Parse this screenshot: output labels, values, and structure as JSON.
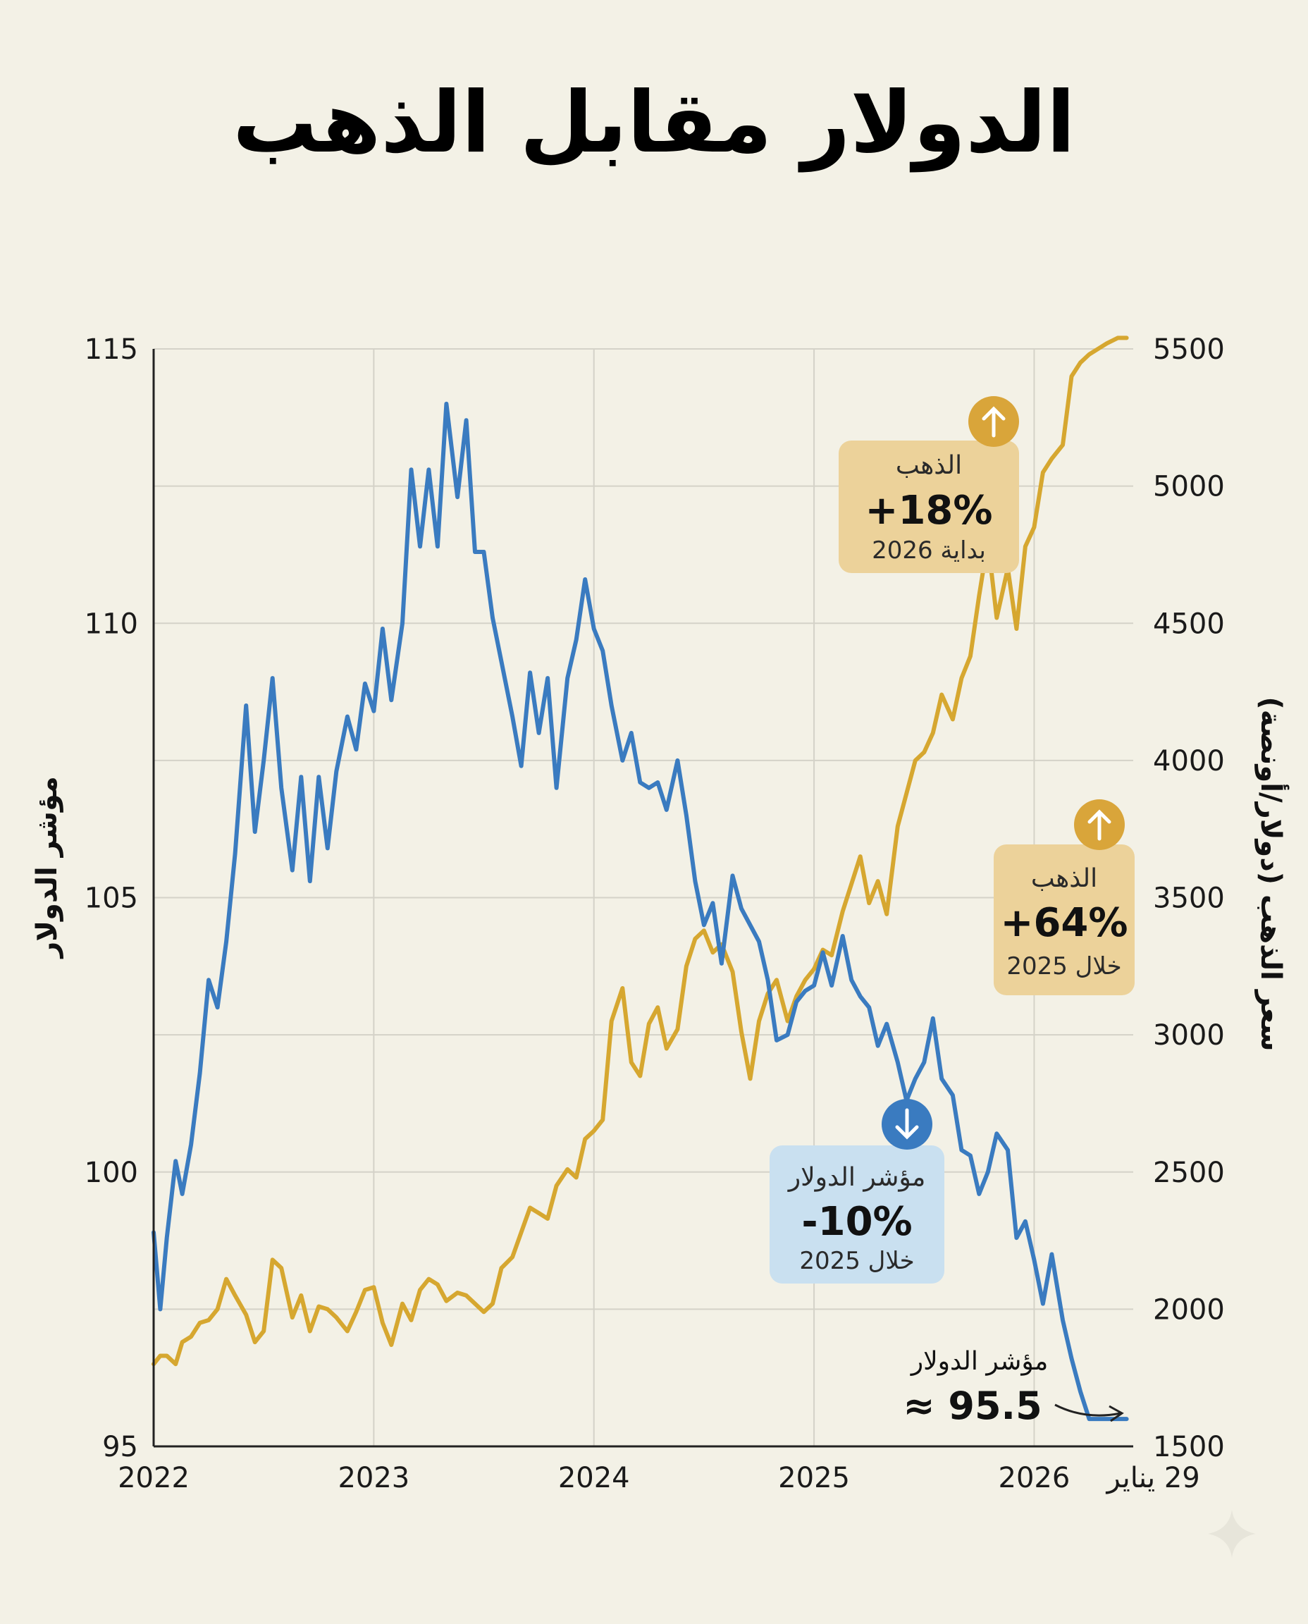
{
  "colors": {
    "background": "#f3f1e6",
    "dollar": "#3a7bc0",
    "gold": "#d6a730",
    "grid": "#d4d2c8",
    "gold_badge_fill": "#ecd29a",
    "gold_badge_circle": "#d9a53a",
    "dollar_badge_fill": "#c9e0f0",
    "dollar_badge_circle": "#3a7bc0"
  },
  "chart_data": {
    "type": "line",
    "title": "الدولار مقابل الذهب",
    "x_tick_labels": [
      "2022",
      "2023",
      "2024",
      "2025",
      "2026",
      "29 يناير"
    ],
    "x_tick_values": [
      2022,
      2023,
      2024,
      2025,
      2026,
      2026.42
    ],
    "xlim": [
      2022,
      2026.45
    ],
    "left_axis": {
      "label": "مؤشر الدولار",
      "ylim": [
        95,
        115
      ],
      "ticks": [
        "95",
        "100",
        "105",
        "110",
        "115"
      ]
    },
    "right_axis": {
      "label": "سعر الذهب (دولار/أونصة)",
      "ylim": [
        1500,
        5500
      ],
      "ticks": [
        "1500",
        "2000",
        "2500",
        "3000",
        "3500",
        "4000",
        "4500",
        "5000",
        "5500"
      ]
    },
    "series": [
      {
        "name": "مؤشر الدولار",
        "axis": "left",
        "x": [
          2022.0,
          2022.03,
          2022.06,
          2022.1,
          2022.13,
          2022.17,
          2022.21,
          2022.25,
          2022.29,
          2022.33,
          2022.37,
          2022.42,
          2022.46,
          2022.5,
          2022.54,
          2022.58,
          2022.63,
          2022.67,
          2022.71,
          2022.75,
          2022.79,
          2022.83,
          2022.88,
          2022.92,
          2022.96,
          2023.0,
          2023.04,
          2023.08,
          2023.13,
          2023.17,
          2023.21,
          2023.25,
          2023.29,
          2023.33,
          2023.38,
          2023.42,
          2023.46,
          2023.5,
          2023.54,
          2023.58,
          2023.63,
          2023.67,
          2023.71,
          2023.75,
          2023.79,
          2023.83,
          2023.88,
          2023.92,
          2023.96,
          2024.0,
          2024.04,
          2024.08,
          2024.13,
          2024.17,
          2024.21,
          2024.25,
          2024.29,
          2024.33,
          2024.38,
          2024.42,
          2024.46,
          2024.5,
          2024.54,
          2024.58,
          2024.63,
          2024.67,
          2024.71,
          2024.75,
          2024.79,
          2024.83,
          2024.88,
          2024.92,
          2024.96,
          2025.0,
          2025.04,
          2025.08,
          2025.13,
          2025.17,
          2025.21,
          2025.25,
          2025.29,
          2025.33,
          2025.38,
          2025.42,
          2025.46,
          2025.5,
          2025.54,
          2025.58,
          2025.63,
          2025.67,
          2025.71,
          2025.75,
          2025.79,
          2025.83,
          2025.88,
          2025.92,
          2025.96,
          2026.0,
          2026.04,
          2026.08,
          2026.13,
          2026.17,
          2026.21,
          2026.25,
          2026.29,
          2026.33,
          2026.38,
          2026.42
        ],
        "values": [
          98.9,
          97.5,
          98.8,
          100.2,
          99.6,
          100.5,
          101.8,
          103.5,
          103.0,
          104.2,
          105.8,
          108.5,
          106.2,
          107.5,
          109.0,
          107.0,
          105.5,
          107.2,
          105.3,
          107.2,
          105.9,
          107.3,
          108.3,
          107.7,
          108.9,
          108.4,
          109.9,
          108.6,
          110.0,
          112.8,
          111.4,
          112.8,
          111.4,
          114.0,
          112.3,
          113.7,
          111.3,
          111.3,
          110.1,
          109.3,
          108.3,
          107.4,
          109.1,
          108.0,
          109.0,
          107.0,
          109.0,
          109.7,
          110.8,
          109.9,
          109.5,
          108.5,
          107.5,
          108.0,
          107.1,
          107.0,
          107.1,
          106.6,
          107.5,
          106.5,
          105.3,
          104.5,
          104.9,
          103.8,
          105.4,
          104.8,
          104.5,
          104.2,
          103.5,
          102.4,
          102.5,
          103.1,
          103.3,
          103.4,
          104.0,
          103.4,
          104.3,
          103.5,
          103.2,
          103.0,
          102.3,
          102.7,
          102.0,
          101.3,
          101.7,
          102.0,
          102.8,
          101.7,
          101.4,
          100.4,
          100.3,
          99.6,
          100.0,
          100.7,
          100.4,
          98.8,
          99.1,
          98.4,
          97.6,
          98.5,
          97.3,
          96.6,
          96.0,
          95.5,
          95.5,
          95.5,
          95.5,
          95.5
        ],
        "color": "#3a7bc0"
      },
      {
        "name": "الذهب",
        "axis": "right",
        "x": [
          2022.0,
          2022.03,
          2022.06,
          2022.1,
          2022.13,
          2022.17,
          2022.21,
          2022.25,
          2022.29,
          2022.33,
          2022.37,
          2022.42,
          2022.46,
          2022.5,
          2022.54,
          2022.58,
          2022.63,
          2022.67,
          2022.71,
          2022.75,
          2022.79,
          2022.83,
          2022.88,
          2022.92,
          2022.96,
          2023.0,
          2023.04,
          2023.08,
          2023.13,
          2023.17,
          2023.21,
          2023.25,
          2023.29,
          2023.33,
          2023.38,
          2023.42,
          2023.46,
          2023.5,
          2023.54,
          2023.58,
          2023.63,
          2023.67,
          2023.71,
          2023.75,
          2023.79,
          2023.83,
          2023.88,
          2023.92,
          2023.96,
          2024.0,
          2024.04,
          2024.08,
          2024.13,
          2024.17,
          2024.21,
          2024.25,
          2024.29,
          2024.33,
          2024.38,
          2024.42,
          2024.46,
          2024.5,
          2024.54,
          2024.58,
          2024.63,
          2024.67,
          2024.71,
          2024.75,
          2024.79,
          2024.83,
          2024.88,
          2024.92,
          2024.96,
          2025.0,
          2025.04,
          2025.08,
          2025.13,
          2025.17,
          2025.21,
          2025.25,
          2025.29,
          2025.33,
          2025.38,
          2025.42,
          2025.46,
          2025.5,
          2025.54,
          2025.58,
          2025.63,
          2025.67,
          2025.71,
          2025.75,
          2025.79,
          2025.83,
          2025.88,
          2025.92,
          2025.96,
          2026.0,
          2026.04,
          2026.08,
          2026.13,
          2026.17,
          2026.21,
          2026.25,
          2026.29,
          2026.33,
          2026.38,
          2026.42
        ],
        "values": [
          1800,
          1830,
          1830,
          1800,
          1880,
          1900,
          1950,
          1960,
          2000,
          2110,
          2050,
          1980,
          1880,
          1920,
          2180,
          2150,
          1970,
          2050,
          1920,
          2010,
          2000,
          1970,
          1920,
          1990,
          2070,
          2080,
          1950,
          1870,
          2020,
          1960,
          2070,
          2110,
          2090,
          2030,
          2060,
          2050,
          2020,
          1990,
          2020,
          2150,
          2190,
          2280,
          2370,
          2350,
          2330,
          2450,
          2510,
          2480,
          2620,
          2650,
          2690,
          3050,
          3170,
          2900,
          2850,
          3040,
          3100,
          2950,
          3020,
          3250,
          3350,
          3380,
          3300,
          3330,
          3230,
          3010,
          2840,
          3050,
          3150,
          3200,
          3050,
          3140,
          3200,
          3240,
          3310,
          3290,
          3450,
          3550,
          3650,
          3480,
          3560,
          3440,
          3760,
          3880,
          4000,
          4030,
          4100,
          4240,
          4150,
          4300,
          4380,
          4600,
          4800,
          4520,
          4700,
          4480,
          4780,
          4850,
          5050,
          5100,
          5150,
          5400,
          5450,
          5480,
          5500,
          5520,
          5540,
          5540
        ],
        "color": "#d6a730"
      }
    ]
  },
  "annotations": {
    "gold_2026": {
      "name": "الذهب",
      "value": "+18%",
      "period": "بداية 2026"
    },
    "gold_2025": {
      "name": "الذهب",
      "value": "+64%",
      "period": "خلال 2025"
    },
    "dollar_2025": {
      "name": "مؤشر الدولار",
      "value": "-10%",
      "period": "خلال 2025"
    },
    "last_dollar": {
      "label": "مؤشر الدولار",
      "value": "≈ 95.5"
    }
  }
}
